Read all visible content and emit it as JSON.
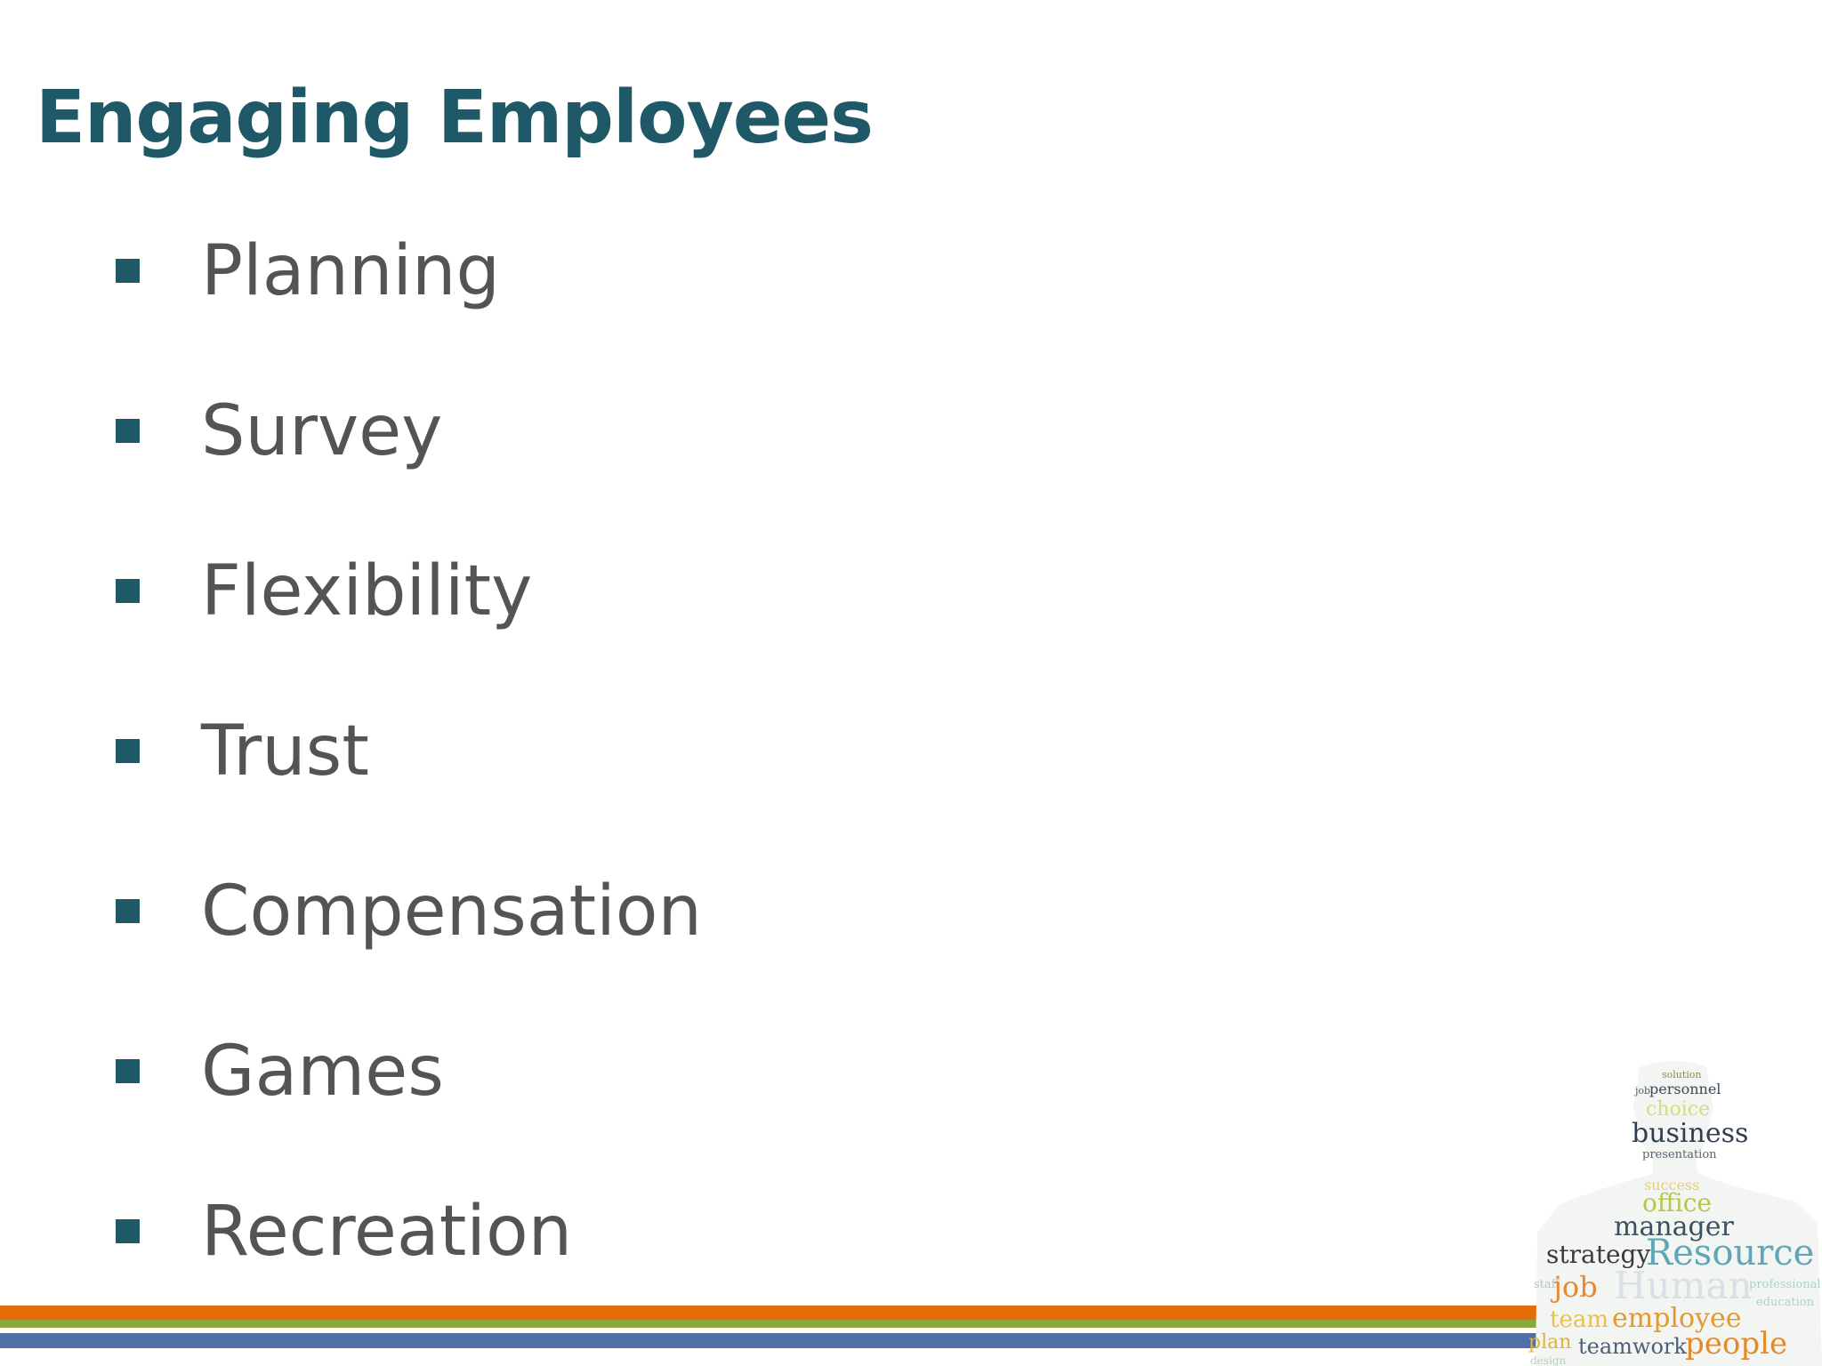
{
  "slide": {
    "title": "Engaging Employees",
    "bullets": [
      {
        "label": "Planning"
      },
      {
        "label": "Survey"
      },
      {
        "label": "Flexibility"
      },
      {
        "label": "Trust"
      },
      {
        "label": "Compensation"
      },
      {
        "label": "Games"
      },
      {
        "label": "Recreation"
      }
    ]
  },
  "wordcloud_words": [
    "solution",
    "job",
    "personnel",
    "choice",
    "business",
    "presentation",
    "success",
    "office",
    "manager",
    "strategy",
    "Resource",
    "staff",
    "job",
    "Human",
    "professional",
    "education",
    "team",
    "employee",
    "plan",
    "teamwork",
    "people",
    "design"
  ],
  "colors": {
    "title": "#1f5866",
    "bullet_marker": "#1f5866",
    "bullet_text": "#545454",
    "stripe_orange": "#e36c0a",
    "stripe_green": "#8aa83e",
    "stripe_blue": "#4f6fa8"
  },
  "icons": {
    "bullet_marker": "square-bullet-icon",
    "wordcloud": "person-silhouette-wordcloud-icon"
  }
}
